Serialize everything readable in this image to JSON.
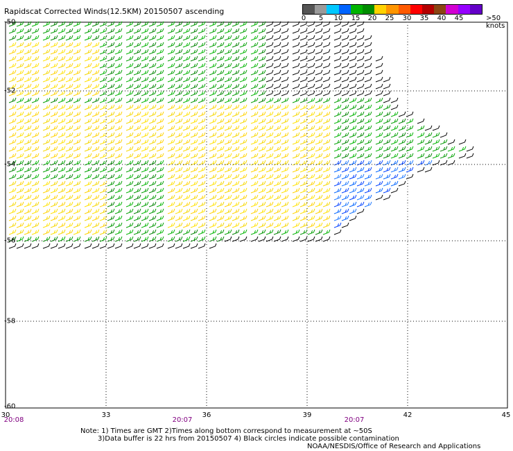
{
  "title": "Rapidscat Corrected Winds(12.5KM) 20150507 ascending",
  "speed_scale": {
    "ticks": [
      "0",
      "5",
      "10",
      "15",
      "20",
      "25",
      "30",
      "35",
      "40",
      "45",
      ">50 knots"
    ],
    "colors": [
      "#555555",
      "#9a9a9a",
      "#00c8ff",
      "#0064ff",
      "#00b400",
      "#008c00",
      "#ffd200",
      "#ff9600",
      "#ff5a00",
      "#ff0000",
      "#b40000",
      "#8b4513",
      "#d200d2",
      "#9600ff",
      "#6400c8"
    ]
  },
  "axes": {
    "x_ticks": [
      "30",
      "33",
      "36",
      "39",
      "42",
      "45"
    ],
    "y_ticks": [
      "-50",
      "-52",
      "-54",
      "-56",
      "-58",
      "-60"
    ]
  },
  "times": [
    "20:08",
    "20:07",
    "20:07"
  ],
  "notes": {
    "line1": "Note: 1) Times are GMT 2)Times along bottom correspond to measurement at ~50S",
    "line2": "3)Data buffer is 22 hrs from 20150507 4) Black circles indicate possible contamination",
    "line3": "NOAA/NESDIS/Office of Research and Applications"
  }
}
